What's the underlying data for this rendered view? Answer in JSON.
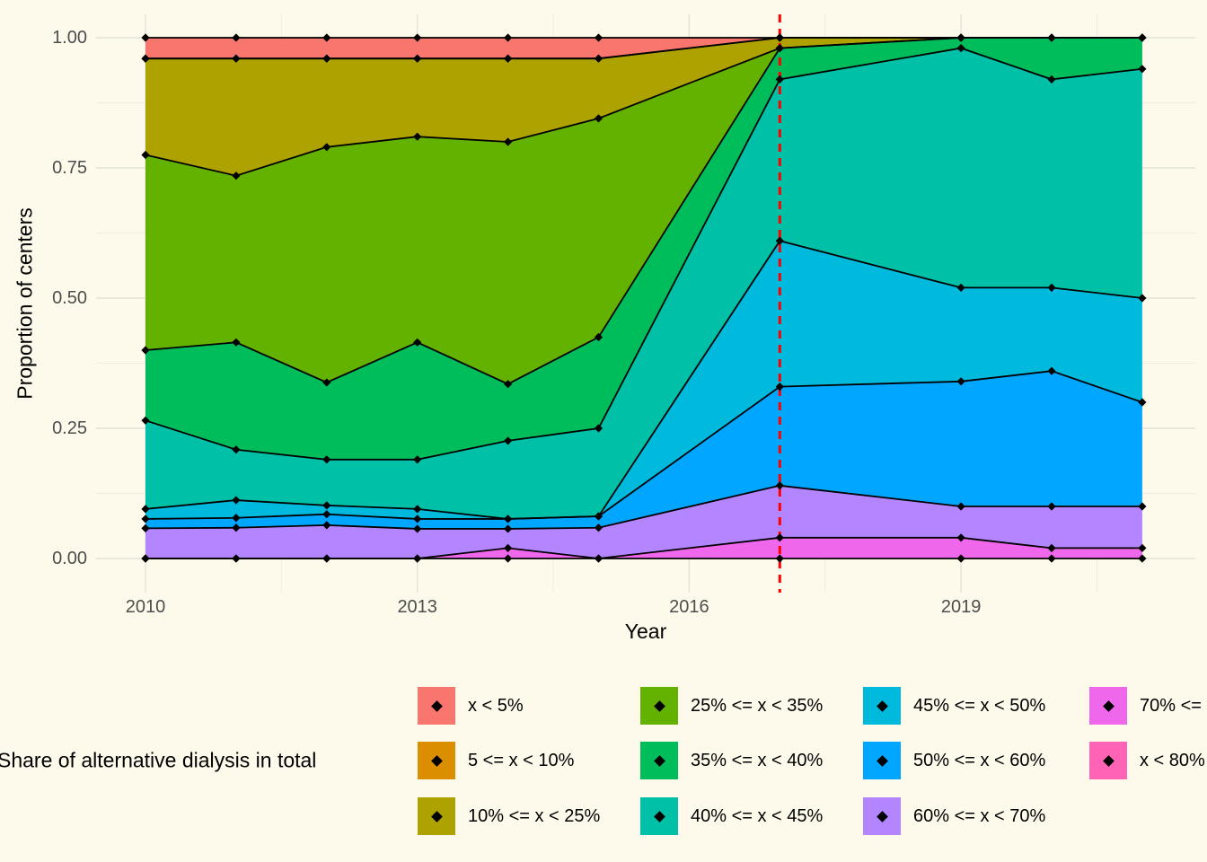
{
  "chart": {
    "y_title": "Proportion of centers",
    "x_title": "Year",
    "x_ticks": [
      {
        "label": "2010",
        "year": 2010
      },
      {
        "label": "2013",
        "year": 2013
      },
      {
        "label": "2016",
        "year": 2016
      },
      {
        "label": "2019",
        "year": 2019
      }
    ],
    "y_ticks": [
      {
        "label": "0.00",
        "value": 0.0
      },
      {
        "label": "0.25",
        "value": 0.25
      },
      {
        "label": "0.50",
        "value": 0.5
      },
      {
        "label": "0.75",
        "value": 0.75
      },
      {
        "label": "1.00",
        "value": 1.0
      }
    ],
    "minor_x": [
      2011.5,
      2014.5,
      2017.5,
      2020.5
    ],
    "minor_y": [
      0.125,
      0.375,
      0.625,
      0.875
    ],
    "background": "#fdfaec",
    "grid_major_color": "#e4e2d8",
    "grid_minor_color": "#efede3",
    "line_color": "#000000",
    "marker": "diamond"
  },
  "chart_data": {
    "type": "area",
    "stacked": true,
    "stack_order": "bottom-to-top",
    "title": "",
    "xlabel": "Year",
    "ylabel": "Proportion of centers",
    "xlim": [
      2009.45,
      2021.6
    ],
    "ylim": [
      -0.066,
      1.045
    ],
    "grid": true,
    "legend_position": "bottom",
    "x": [
      2010,
      2011,
      2012,
      2013,
      2014,
      2015,
      2017,
      2019,
      2020,
      2021
    ],
    "series": [
      {
        "name": "x < 80%",
        "color": "#FF63B6",
        "cumulative_top": [
          0,
          0,
          0,
          0,
          0,
          0,
          0,
          0,
          0,
          0
        ]
      },
      {
        "name": "70% <=",
        "color": "#EF67EB",
        "cumulative_top": [
          0,
          0,
          0,
          0,
          0.02,
          0,
          0.04,
          0.04,
          0.02,
          0.02
        ]
      },
      {
        "name": "60% <= x < 70%",
        "color": "#B385FF",
        "cumulative_top": [
          0.058,
          0.059,
          0.064,
          0.057,
          0.057,
          0.059,
          0.14,
          0.1,
          0.1,
          0.1
        ]
      },
      {
        "name": "50% <= x < 60%",
        "color": "#00A6FF",
        "cumulative_top": [
          0.076,
          0.078,
          0.085,
          0.076,
          0.076,
          0.081,
          0.33,
          0.34,
          0.36,
          0.3
        ]
      },
      {
        "name": "45% <= x < 50%",
        "color": "#00BADE",
        "cumulative_top": [
          0.095,
          0.112,
          0.102,
          0.095,
          0.076,
          0.081,
          0.61,
          0.52,
          0.52,
          0.5
        ]
      },
      {
        "name": "40% <= x < 45%",
        "color": "#00C1A7",
        "cumulative_top": [
          0.265,
          0.209,
          0.19,
          0.19,
          0.226,
          0.25,
          0.92,
          0.98,
          0.92,
          0.94
        ]
      },
      {
        "name": "35% <= x < 40%",
        "color": "#00BD5C",
        "cumulative_top": [
          0.4,
          0.415,
          0.338,
          0.415,
          0.335,
          0.425,
          0.98,
          1.0,
          1.0,
          1.0
        ]
      },
      {
        "name": "25% <= x < 35%",
        "color": "#64B200",
        "cumulative_top": [
          0.775,
          0.735,
          0.79,
          0.81,
          0.8,
          0.845,
          0.98,
          1.0,
          1.0,
          1.0
        ]
      },
      {
        "name": "10% <= x < 25%",
        "color": "#AEA200",
        "cumulative_top": [
          0.96,
          0.96,
          0.96,
          0.96,
          0.96,
          0.96,
          1.0,
          1.0,
          1.0,
          1.0
        ]
      },
      {
        "name": "5 <= x < 10%",
        "color": "#DB8E00",
        "cumulative_top": [
          0.96,
          0.96,
          0.96,
          0.96,
          0.96,
          0.96,
          1.0,
          1.0,
          1.0,
          1.0
        ]
      },
      {
        "name": "x < 5%",
        "color": "#F8766D",
        "cumulative_top": [
          1,
          1,
          1,
          1,
          1,
          1,
          1,
          1,
          1,
          1
        ]
      }
    ],
    "reference_line": {
      "x": 2017,
      "color": "#FF0000",
      "style": "dashed",
      "orientation": "vertical"
    }
  },
  "legend": {
    "title": "Share of alternative dialysis in total",
    "columns": [
      [
        {
          "label": "x < 5%",
          "color": "#F8766D"
        },
        {
          "label": "5 <= x < 10%",
          "color": "#DB8E00"
        },
        {
          "label": "10% <= x < 25%",
          "color": "#AEA200"
        }
      ],
      [
        {
          "label": "25% <= x < 35%",
          "color": "#64B200"
        },
        {
          "label": "35% <= x < 40%",
          "color": "#00BD5C"
        },
        {
          "label": "40% <= x < 45%",
          "color": "#00C1A7"
        }
      ],
      [
        {
          "label": "45% <= x < 50%",
          "color": "#00BADE"
        },
        {
          "label": "50% <= x < 60%",
          "color": "#00A6FF"
        },
        {
          "label": "60% <= x < 70%",
          "color": "#B385FF"
        }
      ],
      [
        {
          "label": "70% <=",
          "color": "#EF67EB"
        },
        {
          "label": "x < 80%",
          "color": "#FF63B6"
        }
      ]
    ]
  }
}
